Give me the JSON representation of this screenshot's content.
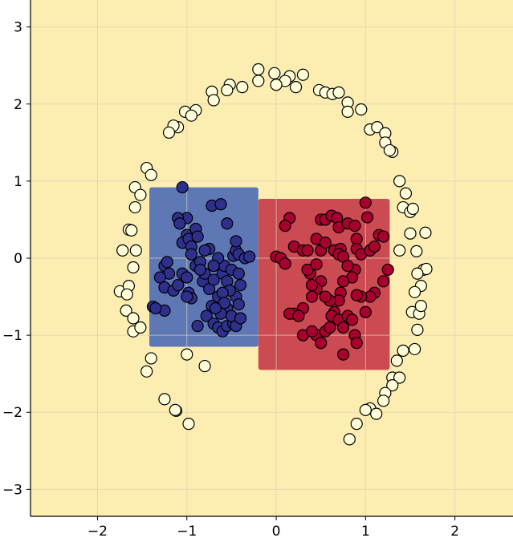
{
  "chart_data": {
    "type": "scatter",
    "title": "",
    "xlabel": "",
    "ylabel": "",
    "xlim": [
      -2.75,
      2.65
    ],
    "ylim": [
      -3.35,
      3.35
    ],
    "xticks": [
      -2,
      -1,
      0,
      1,
      2
    ],
    "yticks": [
      -3,
      -2,
      -1,
      0,
      1,
      2,
      3
    ],
    "xtick_labels": [
      "−2",
      "−1",
      "0",
      "1",
      "2"
    ],
    "ytick_labels": [
      "−3",
      "−2",
      "−1",
      "0",
      "1",
      "2",
      "3"
    ],
    "grid": true,
    "legend": "none",
    "colors": {
      "background_region": "#fdedb0",
      "left_region": "#5e78b6",
      "right_region": "#cc4a52",
      "ring_points": "#ffffd9",
      "left_points": "#2f2f8c",
      "right_points": "#a8002c",
      "point_edge": "#000000",
      "grid": "#d9d2b8"
    },
    "regions": [
      {
        "class": "left-cluster",
        "x_range": [
          -1.42,
          -0.2
        ],
        "y_range": [
          -1.15,
          0.92
        ]
      },
      {
        "class": "right-cluster",
        "x_range": [
          -0.2,
          1.27
        ],
        "y_range": [
          -1.45,
          0.77
        ]
      }
    ],
    "series": [
      {
        "class": "outer-ring",
        "points": [
          [
            -0.2,
            2.45
          ],
          [
            -0.02,
            2.4
          ],
          [
            0.15,
            2.36
          ],
          [
            0.3,
            2.38
          ],
          [
            0.1,
            2.3
          ],
          [
            -0.2,
            2.3
          ],
          [
            0.0,
            2.25
          ],
          [
            0.22,
            2.22
          ],
          [
            -0.38,
            2.22
          ],
          [
            -0.52,
            2.25
          ],
          [
            -0.55,
            2.18
          ],
          [
            -0.72,
            2.16
          ],
          [
            -0.7,
            2.05
          ],
          [
            0.48,
            2.18
          ],
          [
            0.55,
            2.15
          ],
          [
            0.63,
            2.13
          ],
          [
            0.7,
            2.15
          ],
          [
            0.8,
            2.02
          ],
          [
            0.8,
            1.9
          ],
          [
            0.95,
            1.93
          ],
          [
            -0.9,
            1.92
          ],
          [
            -1.02,
            1.9
          ],
          [
            -0.95,
            1.85
          ],
          [
            -1.1,
            1.7
          ],
          [
            -1.15,
            1.72
          ],
          [
            -1.2,
            1.63
          ],
          [
            1.05,
            1.67
          ],
          [
            1.13,
            1.7
          ],
          [
            1.22,
            1.62
          ],
          [
            1.22,
            1.5
          ],
          [
            1.3,
            1.38
          ],
          [
            1.27,
            1.4
          ],
          [
            -1.45,
            1.17
          ],
          [
            -1.4,
            1.08
          ],
          [
            -1.58,
            0.92
          ],
          [
            -1.52,
            0.82
          ],
          [
            -1.58,
            0.66
          ],
          [
            1.38,
            1.0
          ],
          [
            1.45,
            0.84
          ],
          [
            1.42,
            0.66
          ],
          [
            1.5,
            0.6
          ],
          [
            1.53,
            0.64
          ],
          [
            -1.72,
            0.1
          ],
          [
            -1.65,
            0.37
          ],
          [
            -1.62,
            0.36
          ],
          [
            -1.57,
            0.1
          ],
          [
            -1.6,
            -0.12
          ],
          [
            -1.75,
            -0.43
          ],
          [
            -1.65,
            -0.36
          ],
          [
            -1.67,
            -0.47
          ],
          [
            1.5,
            0.32
          ],
          [
            1.67,
            0.33
          ],
          [
            1.57,
            0.09
          ],
          [
            1.65,
            -0.15
          ],
          [
            1.68,
            -0.14
          ],
          [
            1.62,
            -0.36
          ],
          [
            1.55,
            -0.44
          ],
          [
            1.58,
            -0.2
          ],
          [
            1.52,
            -0.7
          ],
          [
            1.6,
            -0.72
          ],
          [
            1.58,
            -0.93
          ],
          [
            1.42,
            -1.2
          ],
          [
            1.55,
            -1.18
          ],
          [
            1.35,
            -1.33
          ],
          [
            1.3,
            -1.55
          ],
          [
            1.38,
            -1.55
          ],
          [
            1.3,
            -1.65
          ],
          [
            1.22,
            -1.75
          ],
          [
            1.2,
            -1.85
          ],
          [
            -1.68,
            -0.68
          ],
          [
            -1.6,
            -0.78
          ],
          [
            -1.6,
            -0.95
          ],
          [
            -1.52,
            -0.9
          ],
          [
            -1.4,
            -1.3
          ],
          [
            -1.45,
            -1.47
          ],
          [
            -1.25,
            -1.83
          ],
          [
            -1.12,
            -1.98
          ],
          [
            -1.13,
            -1.97
          ],
          [
            -0.98,
            -2.15
          ],
          [
            -0.8,
            -1.4
          ],
          [
            -1.0,
            -1.25
          ],
          [
            1.05,
            -1.95
          ],
          [
            1.12,
            -2.02
          ],
          [
            0.9,
            -2.15
          ],
          [
            0.82,
            -2.35
          ],
          [
            1.0,
            -1.97
          ],
          [
            1.38,
            0.1
          ],
          [
            1.62,
            -0.62
          ]
        ]
      },
      {
        "class": "left-cluster",
        "points": [
          [
            -1.05,
            0.92
          ],
          [
            -1.0,
            0.52
          ],
          [
            -1.1,
            0.52
          ],
          [
            -1.08,
            0.45
          ],
          [
            -1.0,
            0.3
          ],
          [
            -1.05,
            0.2
          ],
          [
            -0.98,
            0.25
          ],
          [
            -0.95,
            0.15
          ],
          [
            -0.9,
            0.38
          ],
          [
            -0.95,
            0.05
          ],
          [
            -1.25,
            -0.1
          ],
          [
            -1.22,
            -0.05
          ],
          [
            -1.2,
            -0.2
          ],
          [
            -1.3,
            -0.25
          ],
          [
            -1.25,
            -0.38
          ],
          [
            -1.15,
            -0.42
          ],
          [
            -1.1,
            -0.35
          ],
          [
            -1.05,
            -0.2
          ],
          [
            -1.0,
            -0.25
          ],
          [
            -0.98,
            -0.45
          ],
          [
            -0.95,
            -0.52
          ],
          [
            -0.9,
            -0.1
          ],
          [
            -0.85,
            -0.05
          ],
          [
            -0.82,
            -0.3
          ],
          [
            -0.8,
            -0.2
          ],
          [
            -0.75,
            -0.4
          ],
          [
            -0.7,
            -0.28
          ],
          [
            -0.65,
            -0.5
          ],
          [
            -0.6,
            -0.2
          ],
          [
            -0.58,
            -0.1
          ],
          [
            -0.55,
            -0.3
          ],
          [
            -0.5,
            -0.15
          ],
          [
            -0.48,
            0.03
          ],
          [
            -0.45,
            0.1
          ],
          [
            -0.42,
            -0.2
          ],
          [
            -0.4,
            -0.35
          ],
          [
            -0.45,
            -0.5
          ],
          [
            -0.52,
            -0.42
          ],
          [
            -0.6,
            -0.45
          ],
          [
            -0.65,
            0.0
          ],
          [
            -0.7,
            -0.1
          ],
          [
            -0.75,
            0.12
          ],
          [
            -0.8,
            0.1
          ],
          [
            -0.85,
            -0.15
          ],
          [
            -0.88,
            0.28
          ],
          [
            -0.72,
            0.68
          ],
          [
            -0.62,
            0.7
          ],
          [
            -0.55,
            0.45
          ],
          [
            -0.45,
            0.22
          ],
          [
            -0.42,
            0.05
          ],
          [
            -0.35,
            0.0
          ],
          [
            -0.3,
            0.02
          ],
          [
            -0.42,
            -0.6
          ],
          [
            -0.55,
            -0.65
          ],
          [
            -0.62,
            -0.72
          ],
          [
            -0.72,
            -0.62
          ],
          [
            -0.78,
            -0.75
          ],
          [
            -0.7,
            -0.85
          ],
          [
            -0.65,
            -0.9
          ],
          [
            -0.6,
            -0.95
          ],
          [
            -0.55,
            -0.88
          ],
          [
            -0.48,
            -0.85
          ],
          [
            -0.45,
            -0.88
          ],
          [
            -1.38,
            -0.63
          ],
          [
            -1.25,
            -0.68
          ],
          [
            -1.35,
            -0.65
          ],
          [
            -0.88,
            -0.88
          ],
          [
            -0.5,
            -0.75
          ],
          [
            -0.58,
            -0.58
          ],
          [
            -0.4,
            -0.78
          ],
          [
            -1.0,
            -0.5
          ],
          [
            -0.68,
            -0.65
          ]
        ]
      },
      {
        "class": "right-cluster",
        "points": [
          [
            0.15,
            0.52
          ],
          [
            0.1,
            0.42
          ],
          [
            0.2,
            0.15
          ],
          [
            0.0,
            0.02
          ],
          [
            0.05,
            0.0
          ],
          [
            0.1,
            -0.07
          ],
          [
            0.3,
            0.1
          ],
          [
            0.35,
            0.1
          ],
          [
            0.45,
            0.25
          ],
          [
            0.5,
            0.1
          ],
          [
            0.55,
            0.2
          ],
          [
            0.5,
            0.5
          ],
          [
            0.55,
            0.5
          ],
          [
            0.62,
            0.55
          ],
          [
            0.68,
            0.52
          ],
          [
            0.7,
            0.4
          ],
          [
            0.65,
            0.1
          ],
          [
            0.72,
            0.12
          ],
          [
            0.7,
            0.05
          ],
          [
            0.75,
            0.02
          ],
          [
            0.8,
            0.45
          ],
          [
            0.88,
            0.42
          ],
          [
            0.9,
            0.25
          ],
          [
            0.9,
            0.12
          ],
          [
            0.95,
            0.05
          ],
          [
            1.0,
            0.72
          ],
          [
            1.02,
            0.53
          ],
          [
            1.05,
            0.1
          ],
          [
            1.1,
            0.15
          ],
          [
            1.15,
            0.3
          ],
          [
            1.2,
            0.28
          ],
          [
            1.25,
            -0.15
          ],
          [
            1.2,
            -0.3
          ],
          [
            1.1,
            -0.45
          ],
          [
            1.05,
            -0.5
          ],
          [
            1.0,
            -0.7
          ],
          [
            0.95,
            -0.5
          ],
          [
            0.9,
            -0.48
          ],
          [
            0.88,
            -0.15
          ],
          [
            0.85,
            -0.25
          ],
          [
            0.8,
            -0.1
          ],
          [
            0.75,
            -0.3
          ],
          [
            0.72,
            -0.45
          ],
          [
            0.7,
            -0.55
          ],
          [
            0.65,
            -0.7
          ],
          [
            0.62,
            -0.75
          ],
          [
            0.6,
            -0.55
          ],
          [
            0.55,
            -0.5
          ],
          [
            0.5,
            -0.3
          ],
          [
            0.45,
            -0.4
          ],
          [
            0.4,
            -0.35
          ],
          [
            0.38,
            -0.2
          ],
          [
            0.35,
            -0.15
          ],
          [
            0.4,
            -0.5
          ],
          [
            0.3,
            -0.65
          ],
          [
            0.2,
            -0.72
          ],
          [
            0.15,
            -0.72
          ],
          [
            0.25,
            -0.75
          ],
          [
            0.3,
            -1.0
          ],
          [
            0.45,
            -1.0
          ],
          [
            0.5,
            -1.1
          ],
          [
            0.55,
            -0.95
          ],
          [
            0.6,
            -0.9
          ],
          [
            0.7,
            -0.8
          ],
          [
            0.75,
            -0.9
          ],
          [
            0.8,
            -0.75
          ],
          [
            0.85,
            -0.8
          ],
          [
            0.88,
            -1.0
          ],
          [
            0.9,
            -1.1
          ],
          [
            0.75,
            -1.25
          ],
          [
            0.4,
            -0.95
          ],
          [
            0.45,
            -0.08
          ]
        ]
      }
    ]
  }
}
